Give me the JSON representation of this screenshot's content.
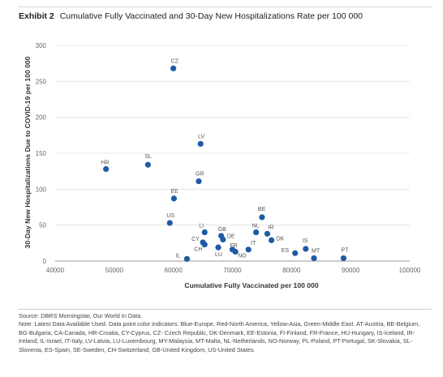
{
  "header": {
    "exhibit_label": "Exhibit 2",
    "title": "Cumulative Fully Vaccinated and 30-Day New Hospitalizations Rate per 100 000"
  },
  "chart_data": {
    "type": "scatter",
    "xlabel": "Cumulative Fully Vaccinated per 100 000",
    "ylabel": "30-Day New Hospitalizations Due to COVID-19 per 100 000",
    "xlim": [
      40000,
      100000
    ],
    "ylim": [
      0,
      300
    ],
    "xticks": [
      40000,
      50000,
      60000,
      70000,
      80000,
      90000,
      100000
    ],
    "yticks": [
      0,
      50,
      100,
      150,
      200,
      250,
      300
    ],
    "grid": true,
    "legend": "none",
    "point_color": "#1f5aa6",
    "points": [
      {
        "label": "CZ",
        "x": 60000,
        "y": 268
      },
      {
        "label": "LV",
        "x": 64600,
        "y": 163
      },
      {
        "label": "HR",
        "x": 48600,
        "y": 128
      },
      {
        "label": "SL",
        "x": 55700,
        "y": 134
      },
      {
        "label": "GR",
        "x": 64300,
        "y": 111
      },
      {
        "label": "EE",
        "x": 60100,
        "y": 87
      },
      {
        "label": "US",
        "x": 59400,
        "y": 53
      },
      {
        "label": "LI",
        "x": 65300,
        "y": 40
      },
      {
        "label": "GB",
        "x": 68100,
        "y": 35
      },
      {
        "label": "DE",
        "x": 68400,
        "y": 30
      },
      {
        "label": "CY",
        "x": 65000,
        "y": 26
      },
      {
        "label": "CH",
        "x": 65300,
        "y": 23
      },
      {
        "label": "LU",
        "x": 67600,
        "y": 19
      },
      {
        "label": "FR",
        "x": 70000,
        "y": 16
      },
      {
        "label": "IL",
        "x": 62300,
        "y": 3
      },
      {
        "label": "NO",
        "x": 70500,
        "y": 13
      },
      {
        "label": "IT",
        "x": 72700,
        "y": 16
      },
      {
        "label": "BE",
        "x": 75000,
        "y": 61
      },
      {
        "label": "NL",
        "x": 74000,
        "y": 40
      },
      {
        "label": "IR",
        "x": 75900,
        "y": 38
      },
      {
        "label": "DK",
        "x": 76600,
        "y": 29
      },
      {
        "label": "ES",
        "x": 80600,
        "y": 11
      },
      {
        "label": "IS",
        "x": 82400,
        "y": 17
      },
      {
        "label": "MT",
        "x": 83800,
        "y": 4
      },
      {
        "label": "PT",
        "x": 88800,
        "y": 4
      }
    ]
  },
  "notes": {
    "source": "Source: DBRS Morningstar, Our World In Data.",
    "note": "Note: Latest Data Available Used. Data point color indicators: Blue-Europe, Red-North America, Yellow-Asia, Green-Middle East. AT-Austria, BE-Belgium, BG-Bulgaria, CA-Canada, HR-Croatia, CY-Cyprus, CZ- Czech Republic, DK-Denmark, EE-Estonia, FI-Finland, FR-France, HU-Hungary, IS-Iceland, IR-Ireland, IL-Israel, IT-Italy, LV-Latvia, LU-Luxembourg, MY-Malaysia, MT-Malta, NL-Netherlands, NO-Norway, PL-Poland, PT-Portugal, SK-Slovakia, SL-Slovenia, ES-Spain, SE-Sweden, CH-Switzerland, GB-United Kingdom, US-United States."
  }
}
